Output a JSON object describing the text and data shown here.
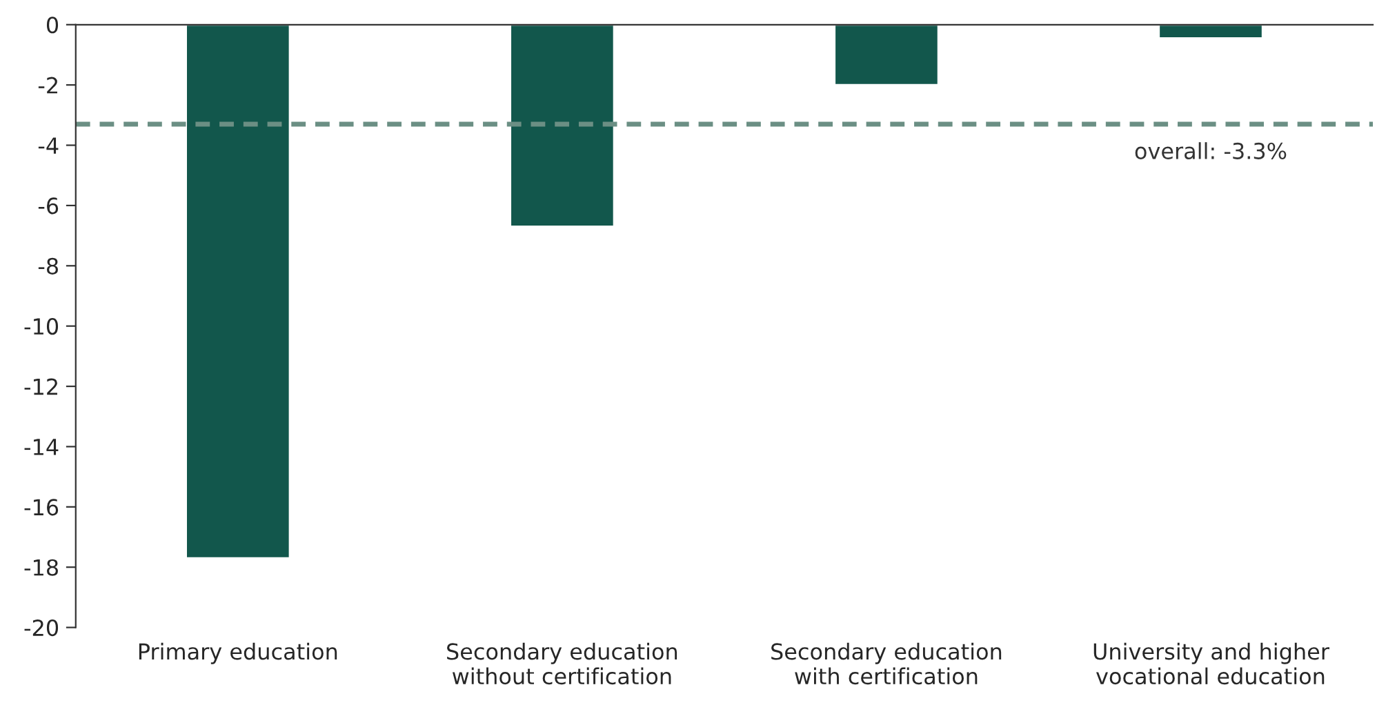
{
  "chart_data": {
    "type": "bar",
    "categories": [
      "Primary education",
      "Secondary education\nwithout certification",
      "Secondary education\nwith certification",
      "University and higher\nvocational education"
    ],
    "values": [
      -17.7,
      -6.7,
      -2.0,
      -0.45
    ],
    "color": "#12574c",
    "ylim": [
      -20,
      0
    ],
    "yticks": [
      -20,
      -18,
      -16,
      -14,
      -12,
      -10,
      -8,
      -6,
      -4,
      -2,
      0
    ],
    "ref_lines": [
      {
        "axis": "y",
        "value": -3.3,
        "label": "overall: -3.3%",
        "color": "#6b8f84",
        "line_style": "dashed"
      }
    ],
    "grid": false,
    "legend": false
  }
}
